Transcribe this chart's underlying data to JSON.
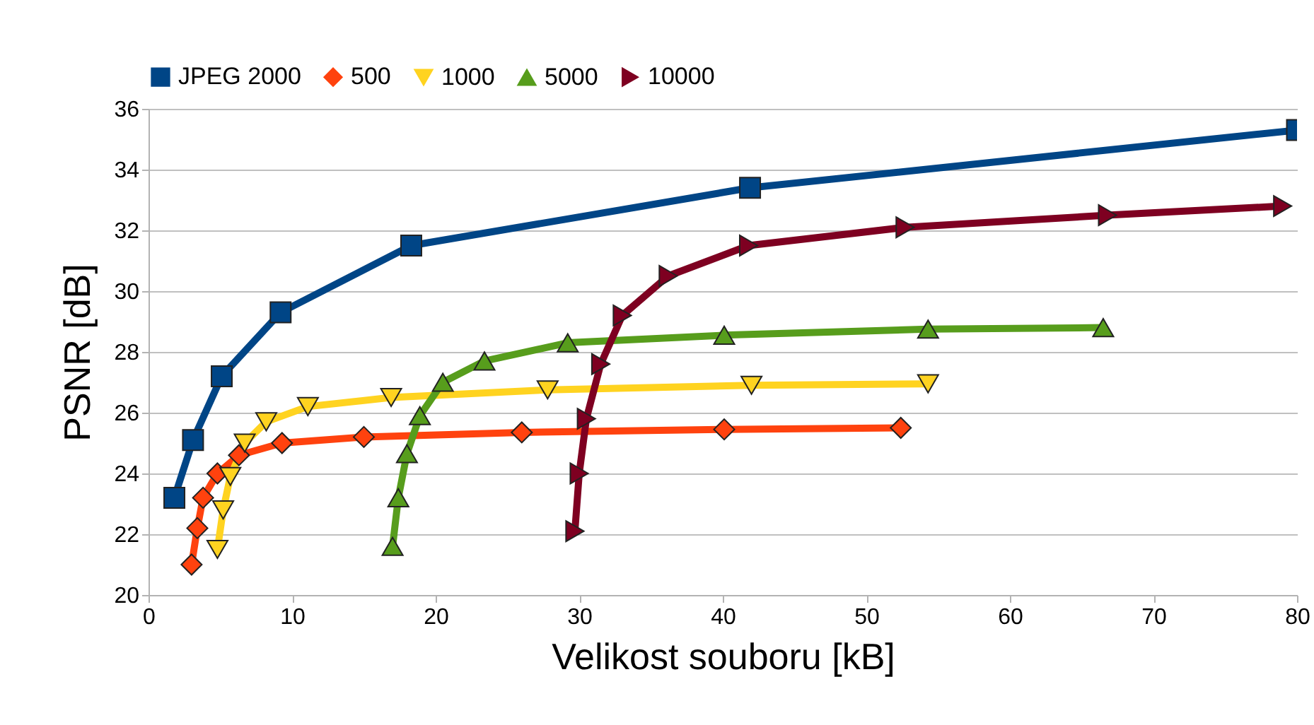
{
  "chart_data": {
    "type": "line",
    "xlabel": "Velikost souboru [kB]",
    "ylabel": "PSNR [dB]",
    "xlim": [
      0,
      80
    ],
    "xticks": [
      0,
      10,
      20,
      30,
      40,
      50,
      60,
      70,
      80
    ],
    "ylim": [
      20,
      36
    ],
    "yticks": [
      20,
      22,
      24,
      26,
      28,
      30,
      32,
      34,
      36
    ],
    "grid": "y",
    "legend": "top",
    "line_style": "solid",
    "series": [
      {
        "name": "JPEG 2000",
        "color": "#004586",
        "marker": "square",
        "x": [
          1.8,
          3.1,
          5.1,
          9.2,
          18.3,
          41.9,
          80
        ],
        "values": [
          23.2,
          25.1,
          27.2,
          29.3,
          31.5,
          33.4,
          35.3
        ]
      },
      {
        "name": "500",
        "color": "#ff420e",
        "marker": "diamond",
        "x": [
          3.0,
          3.4,
          3.8,
          4.8,
          6.3,
          9.3,
          15.0,
          26.0,
          40.1,
          52.4
        ],
        "values": [
          21.0,
          22.2,
          23.2,
          24.0,
          24.6,
          25.0,
          25.2,
          25.35,
          25.45,
          25.5
        ]
      },
      {
        "name": "1000",
        "color": "#ffd320",
        "marker": "triangle-down",
        "x": [
          4.8,
          5.2,
          5.7,
          6.7,
          8.2,
          11.1,
          16.9,
          27.8,
          42.0,
          54.3
        ],
        "values": [
          21.5,
          22.8,
          23.9,
          25.0,
          25.7,
          26.2,
          26.5,
          26.75,
          26.9,
          26.95
        ]
      },
      {
        "name": "5000",
        "color": "#579d1c",
        "marker": "triangle",
        "x": [
          17.0,
          17.4,
          18.0,
          18.9,
          20.5,
          23.4,
          29.2,
          40.1,
          54.3,
          66.5
        ],
        "values": [
          21.6,
          23.2,
          24.65,
          25.9,
          27.0,
          27.7,
          28.3,
          28.55,
          28.75,
          28.8
        ]
      },
      {
        "name": "10000",
        "color": "#7e0021",
        "marker": "triangle-right",
        "x": [
          29.7,
          30.0,
          30.5,
          31.5,
          33.0,
          36.2,
          41.8,
          52.7,
          66.8,
          79.0
        ],
        "values": [
          22.1,
          24.0,
          25.8,
          27.6,
          29.2,
          30.5,
          31.5,
          32.1,
          32.5,
          32.8
        ]
      }
    ]
  }
}
